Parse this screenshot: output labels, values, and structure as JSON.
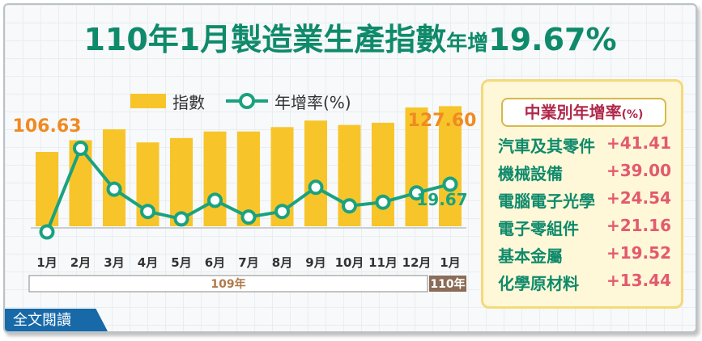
{
  "title": {
    "part1": "110年1月製造業生產指數",
    "part2": "年增",
    "part3": "19.67%"
  },
  "legend": {
    "bar_label": "指數",
    "line_label": "年增率(%)"
  },
  "colors": {
    "bar": "#f7c52a",
    "line": "#1aa27f",
    "title": "#0f8a6b",
    "value_orange": "#f08a23"
  },
  "chart_data": {
    "type": "bar+line",
    "categories": [
      "1月",
      "2月",
      "3月",
      "4月",
      "5月",
      "6月",
      "7月",
      "8月",
      "9月",
      "10月",
      "11月",
      "12月",
      "1月"
    ],
    "year_groups": [
      {
        "label": "109年",
        "span": 12
      },
      {
        "label": "110年",
        "span": 1
      }
    ],
    "series": [
      {
        "name": "指數",
        "type": "bar",
        "values": [
          106.63,
          112,
          117,
          111,
          113,
          116,
          116,
          118,
          121,
          119,
          120,
          127,
          127.6
        ]
      },
      {
        "name": "年增率(%)",
        "type": "line",
        "values": [
          -6,
          39,
          17,
          5,
          1,
          11,
          2,
          5,
          18,
          8,
          10,
          15,
          19.67
        ]
      }
    ],
    "labels": {
      "first_bar": "106.63",
      "last_bar": "127.60",
      "last_line": "19.67"
    }
  },
  "panel": {
    "title": "中業別年增率",
    "unit": "(%)",
    "rows": [
      {
        "name": "汽車及其零件",
        "value": "+41.41"
      },
      {
        "name": "機械設備",
        "value": "+39.00"
      },
      {
        "name": "電腦電子光學",
        "value": "+24.54"
      },
      {
        "name": "電子零組件",
        "value": "+21.16"
      },
      {
        "name": "基本金屬",
        "value": "+19.52"
      },
      {
        "name": "化學原材料",
        "value": "+13.44"
      }
    ]
  },
  "badge": "全文閱讀"
}
